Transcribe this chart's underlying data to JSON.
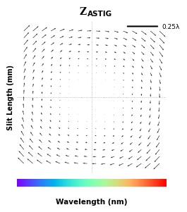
{
  "title_main": "Z",
  "title_sub": "ASTIG",
  "xlabel": "Wavelength (nm)",
  "ylabel": "Slit Length (mm)",
  "scale_label": "0.25λ",
  "nx": 16,
  "ny": 20,
  "background_color": "#ffffff",
  "arrow_color": "#222222",
  "fig_width": 2.71,
  "fig_height": 3.09,
  "dpi": 100
}
